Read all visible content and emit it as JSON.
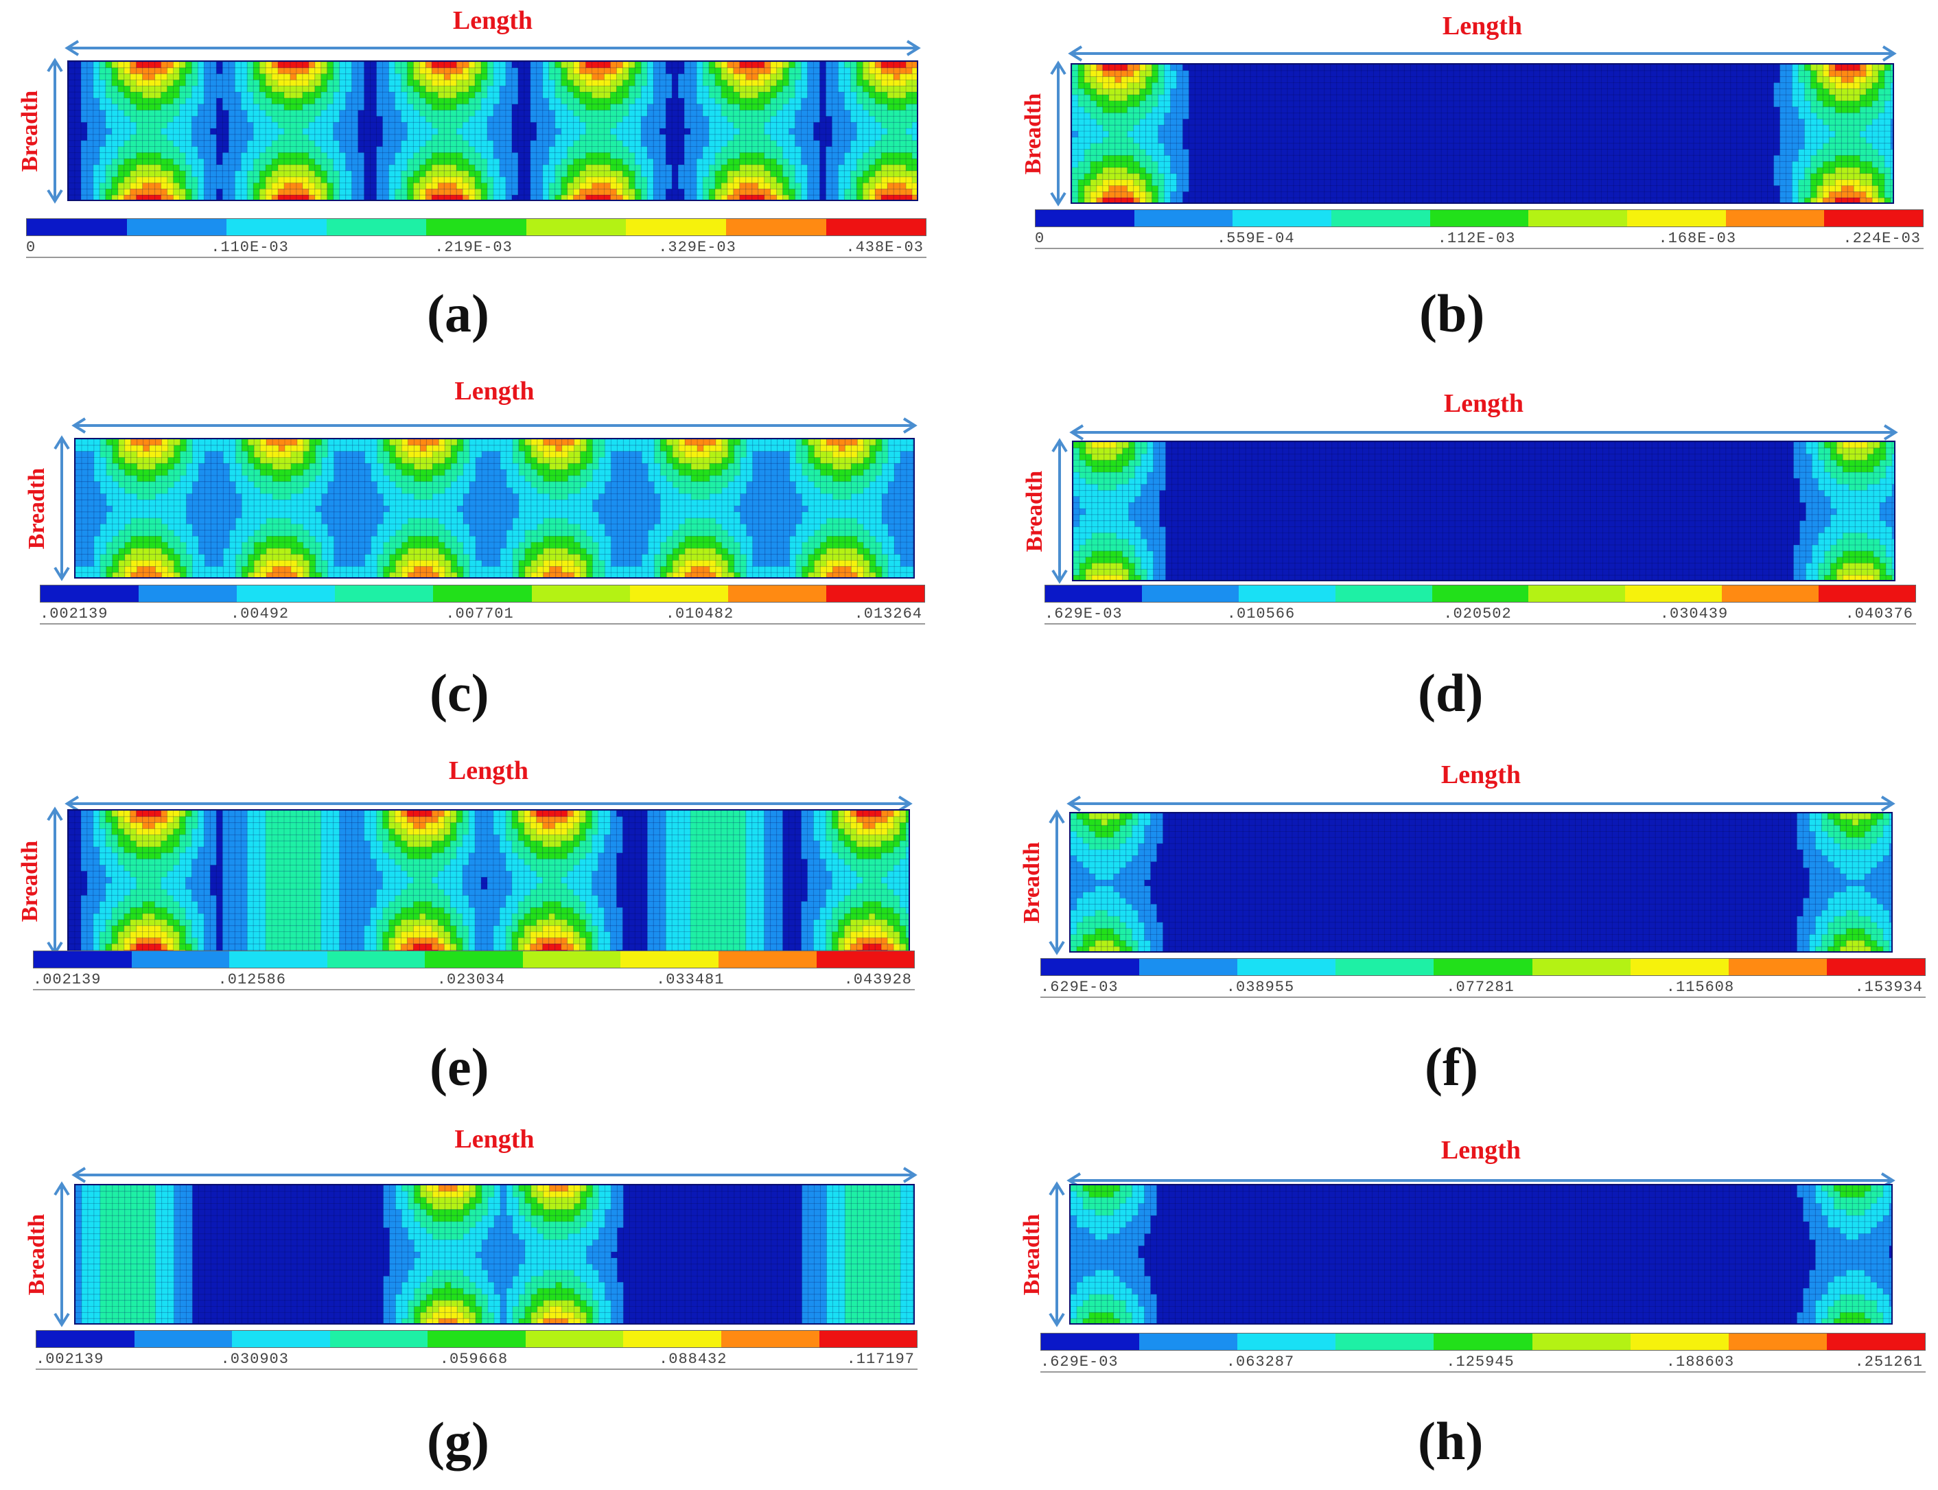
{
  "labels": {
    "length": "Length",
    "breadth": "Breadth"
  },
  "legend_colors": [
    "#0a18c8",
    "#1a8ff0",
    "#19e0f5",
    "#1ef0a5",
    "#22e01a",
    "#b4f214",
    "#f6f20c",
    "#ff8a12",
    "#ee1212"
  ],
  "panels": [
    {
      "id": "a",
      "caption": "(a)",
      "ticks": [
        "0",
        ".110E-03",
        ".219E-03",
        ".329E-03",
        ".438E-03"
      ]
    },
    {
      "id": "b",
      "caption": "(b)",
      "ticks": [
        "0",
        ".559E-04",
        ".112E-03",
        ".168E-03",
        ".224E-03"
      ]
    },
    {
      "id": "c",
      "caption": "(c)",
      "ticks": [
        ".002139",
        ".00492",
        ".007701",
        ".010482",
        ".013264"
      ]
    },
    {
      "id": "d",
      "caption": "(d)",
      "ticks": [
        ".629E-03",
        ".010566",
        ".020502",
        ".030439",
        ".040376"
      ]
    },
    {
      "id": "e",
      "caption": "(e)",
      "ticks": [
        ".002139",
        ".012586",
        ".023034",
        ".033481",
        ".043928"
      ]
    },
    {
      "id": "f",
      "caption": "(f)",
      "ticks": [
        ".629E-03",
        ".038955",
        ".077281",
        ".115608",
        ".153934"
      ]
    },
    {
      "id": "g",
      "caption": "(g)",
      "ticks": [
        ".002139",
        ".030903",
        ".059668",
        ".088432",
        ".117197"
      ]
    },
    {
      "id": "h",
      "caption": "(h)",
      "ticks": [
        ".629E-03",
        ".063287",
        ".125945",
        ".188603",
        ".251261"
      ]
    }
  ]
}
